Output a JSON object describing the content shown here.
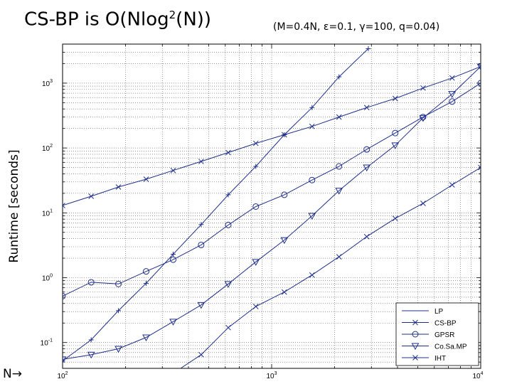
{
  "title": {
    "main_prefix": "CS-BP is O(Nlog",
    "main_exp": "2",
    "main_suffix": "(N))",
    "params": "(M=0.4N, ε=0.1, γ=100, q=0.04)"
  },
  "n_label": "N→",
  "chart_data": {
    "type": "line",
    "title": "",
    "xlabel": "",
    "ylabel": "Runtime [seconds]",
    "xscale": "log",
    "yscale": "log",
    "xlim": [
      100,
      10000
    ],
    "ylim": [
      0.04,
      4000
    ],
    "grid": true,
    "legend_position": "bottom-right",
    "x_ticks": [
      {
        "v": 100,
        "base": "10",
        "exp": "2"
      },
      {
        "v": 1000,
        "base": "10",
        "exp": "3"
      },
      {
        "v": 10000,
        "base": "10",
        "exp": "4"
      }
    ],
    "y_ticks": [
      {
        "v": 0.1,
        "base": "10",
        "exp": "-1"
      },
      {
        "v": 1,
        "base": "10",
        "exp": "0"
      },
      {
        "v": 10,
        "base": "10",
        "exp": "1"
      },
      {
        "v": 100,
        "base": "10",
        "exp": "2"
      },
      {
        "v": 1000,
        "base": "10",
        "exp": "3"
      }
    ],
    "line_color": "#1f2f8a",
    "series": [
      {
        "name": "LP",
        "marker": "plus",
        "points": [
          [
            100,
            0.052
          ],
          [
            137,
            0.11
          ],
          [
            185,
            0.31
          ],
          [
            251,
            0.82
          ],
          [
            338,
            2.3
          ],
          [
            460,
            6.6
          ],
          [
            620,
            19
          ],
          [
            840,
            52
          ],
          [
            1150,
            160
          ],
          [
            1560,
            420
          ],
          [
            2100,
            1250
          ],
          [
            2900,
            3400
          ]
        ]
      },
      {
        "name": "CS-BP",
        "marker": "x",
        "points": [
          [
            340,
            0.034
          ],
          [
            460,
            0.065
          ],
          [
            620,
            0.17
          ],
          [
            840,
            0.36
          ],
          [
            1150,
            0.6
          ],
          [
            1560,
            1.1
          ],
          [
            2100,
            2.1
          ],
          [
            2850,
            4.3
          ],
          [
            3900,
            8.2
          ],
          [
            5300,
            14
          ],
          [
            7300,
            27
          ],
          [
            10000,
            50
          ]
        ]
      },
      {
        "name": "GPSR",
        "marker": "circle",
        "points": [
          [
            100,
            0.52
          ],
          [
            137,
            0.85
          ],
          [
            185,
            0.8
          ],
          [
            251,
            1.25
          ],
          [
            338,
            1.9
          ],
          [
            460,
            3.2
          ],
          [
            620,
            6.5
          ],
          [
            840,
            12.5
          ],
          [
            1150,
            19
          ],
          [
            1560,
            32
          ],
          [
            2100,
            52
          ],
          [
            2850,
            95
          ],
          [
            3900,
            170
          ],
          [
            5300,
            300
          ],
          [
            7300,
            520
          ],
          [
            10000,
            1000
          ]
        ]
      },
      {
        "name": "CoSaMP",
        "marker": "triangle-down",
        "points": [
          [
            100,
            0.055
          ],
          [
            137,
            0.065
          ],
          [
            185,
            0.08
          ],
          [
            251,
            0.12
          ],
          [
            338,
            0.21
          ],
          [
            460,
            0.38
          ],
          [
            620,
            0.8
          ],
          [
            840,
            1.75
          ],
          [
            1150,
            3.8
          ],
          [
            1560,
            9
          ],
          [
            2100,
            22
          ],
          [
            2850,
            50
          ],
          [
            3900,
            110
          ],
          [
            5300,
            290
          ],
          [
            7300,
            680
          ],
          [
            10000,
            1800
          ]
        ]
      },
      {
        "name": "IHT",
        "marker": "x",
        "points": [
          [
            100,
            13
          ],
          [
            137,
            18
          ],
          [
            185,
            25
          ],
          [
            251,
            33
          ],
          [
            338,
            45
          ],
          [
            460,
            62
          ],
          [
            620,
            85
          ],
          [
            840,
            118
          ],
          [
            1150,
            160
          ],
          [
            1560,
            215
          ],
          [
            2100,
            300
          ],
          [
            2850,
            420
          ],
          [
            3900,
            580
          ],
          [
            5300,
            840
          ],
          [
            7300,
            1200
          ],
          [
            10000,
            1800
          ]
        ]
      }
    ],
    "legend": [
      "LP",
      "CS-BP",
      "GPSR",
      "Co.Sa.MP",
      "IHT"
    ]
  }
}
